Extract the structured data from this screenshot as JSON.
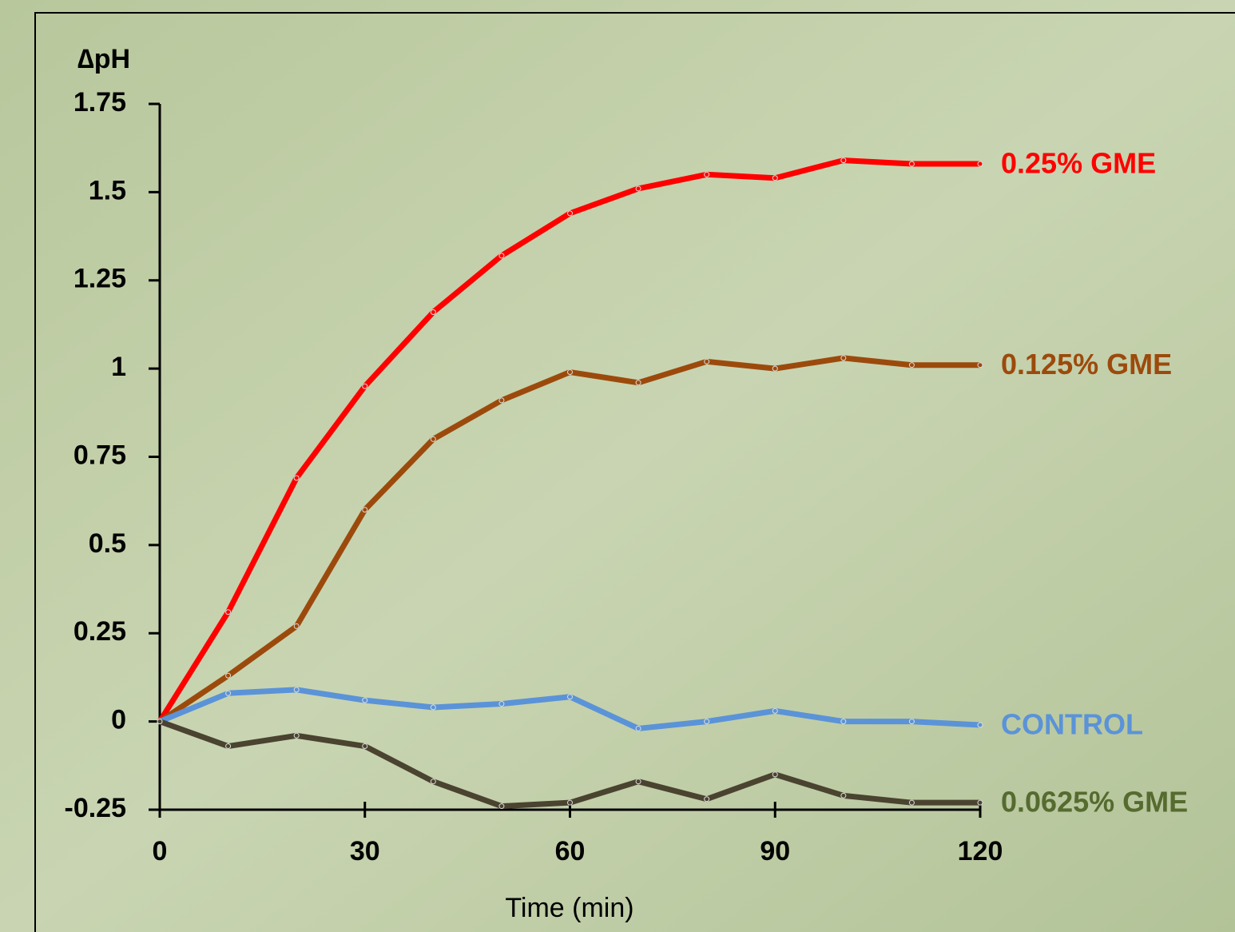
{
  "chart_data": {
    "type": "line",
    "ylabel": "∆pH",
    "xlabel": "Time (min)",
    "x": [
      0,
      10,
      20,
      30,
      40,
      50,
      60,
      70,
      80,
      90,
      100,
      110,
      120
    ],
    "xlim": [
      0,
      120
    ],
    "xticks": [
      0,
      30,
      60,
      90,
      120
    ],
    "ylim": [
      -0.25,
      1.75
    ],
    "yticks": [
      1.75,
      1.5,
      1.25,
      1,
      0.75,
      0.5,
      0.25,
      0,
      -0.25
    ],
    "series": [
      {
        "name": "0.25% GME",
        "color": "#ff0000",
        "label_color": "#ff0000",
        "values": [
          0,
          0.31,
          0.69,
          0.95,
          1.16,
          1.32,
          1.44,
          1.51,
          1.55,
          1.54,
          1.59,
          1.58,
          1.58
        ]
      },
      {
        "name": "0.125% GME",
        "color": "#9c4a0c",
        "label_color": "#9c4a0c",
        "values": [
          0,
          0.13,
          0.27,
          0.6,
          0.8,
          0.91,
          0.99,
          0.96,
          1.02,
          1.0,
          1.03,
          1.01,
          1.01
        ]
      },
      {
        "name": "CONTROL",
        "color": "#5b93d8",
        "label_color": "#5b93d8",
        "values": [
          0,
          0.08,
          0.09,
          0.06,
          0.04,
          0.05,
          0.07,
          -0.02,
          0,
          0.03,
          0,
          0,
          -0.01
        ]
      },
      {
        "name": "0.0625% GME",
        "color": "#4a4330",
        "label_color": "#556b2f",
        "values": [
          0,
          -0.07,
          -0.04,
          -0.07,
          -0.17,
          -0.24,
          -0.23,
          -0.17,
          -0.22,
          -0.15,
          -0.21,
          -0.23,
          -0.23
        ]
      }
    ]
  }
}
